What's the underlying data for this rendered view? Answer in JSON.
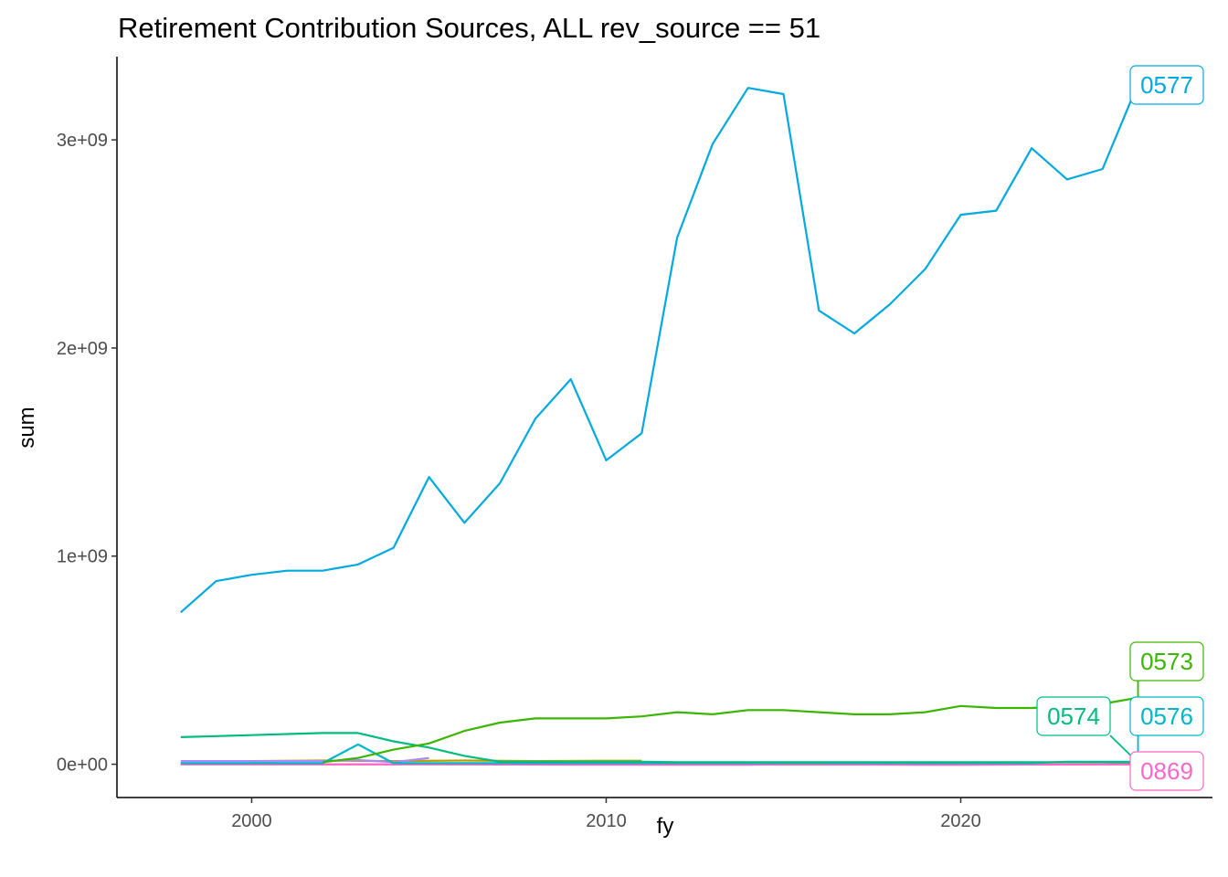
{
  "chart_data": {
    "type": "line",
    "title": "Retirement Contribution Sources, ALL rev_source == 51",
    "xlabel": "fy",
    "ylabel": "sum",
    "xlim": [
      1996.2,
      2027.1
    ],
    "ylim": [
      -160000000,
      3400000000
    ],
    "x_ticks": [
      2000,
      2010,
      2020
    ],
    "x_tick_labels": [
      "2000",
      "2010",
      "2020"
    ],
    "y_ticks": [
      0,
      1000000000,
      2000000000,
      3000000000
    ],
    "y_tick_labels": [
      "0e+00",
      "1e+09",
      "2e+09",
      "3e+09"
    ],
    "grid": false,
    "legend": "none (direct labels at line ends)",
    "series": [
      {
        "name": "0577",
        "color": "#00a9e0",
        "x": [
          1998,
          1999,
          2000,
          2001,
          2002,
          2003,
          2004,
          2005,
          2006,
          2007,
          2008,
          2009,
          2010,
          2011,
          2012,
          2013,
          2014,
          2015,
          2016,
          2017,
          2018,
          2019,
          2020,
          2021,
          2022,
          2023,
          2024,
          2025
        ],
        "y": [
          730000000,
          880000000,
          910000000,
          930000000,
          930000000,
          960000000,
          1040000000,
          1380000000,
          1160000000,
          1350000000,
          1660000000,
          1850000000,
          1460000000,
          1590000000,
          2530000000,
          2980000000,
          3250000000,
          3220000000,
          2180000000,
          2070000000,
          2210000000,
          2380000000,
          2640000000,
          2660000000,
          2960000000,
          2810000000,
          2860000000,
          3270000000
        ]
      },
      {
        "name": "0573",
        "color": "#3ab500",
        "x": [
          2002,
          2003,
          2004,
          2005,
          2006,
          2007,
          2008,
          2009,
          2010,
          2011,
          2012,
          2013,
          2014,
          2015,
          2016,
          2017,
          2018,
          2019,
          2020,
          2021,
          2022,
          2023,
          2024,
          2025
        ],
        "y": [
          10000000,
          30000000,
          70000000,
          100000000,
          160000000,
          200000000,
          220000000,
          220000000,
          220000000,
          230000000,
          250000000,
          240000000,
          260000000,
          260000000,
          250000000,
          240000000,
          240000000,
          250000000,
          280000000,
          270000000,
          270000000,
          280000000,
          290000000,
          320000000
        ]
      },
      {
        "name": "0574",
        "color": "#00bc7e",
        "x": [
          1998,
          1999,
          2000,
          2001,
          2002,
          2003,
          2004,
          2005,
          2006,
          2007,
          2008,
          2009,
          2010,
          2011,
          2012,
          2013,
          2014,
          2015,
          2016,
          2017,
          2018,
          2019,
          2020,
          2021,
          2022,
          2023,
          2024,
          2025
        ],
        "y": [
          130000000,
          135000000,
          140000000,
          145000000,
          150000000,
          150000000,
          110000000,
          80000000,
          40000000,
          12000000,
          12000000,
          12000000,
          12000000,
          12000000,
          10000000,
          10000000,
          10000000,
          10000000,
          10000000,
          10000000,
          10000000,
          10000000,
          10000000,
          10000000,
          10000000,
          10000000,
          10000000,
          8000000
        ]
      },
      {
        "name": "0576",
        "color": "#00b6c8",
        "x": [
          1998,
          1999,
          2000,
          2001,
          2002,
          2003,
          2004,
          2005,
          2006,
          2007,
          2008,
          2009,
          2010,
          2011,
          2012,
          2013,
          2014,
          2015,
          2016,
          2017,
          2018,
          2019,
          2020,
          2021,
          2022,
          2023,
          2024,
          2025
        ],
        "y": [
          5000000,
          5000000,
          5000000,
          5000000,
          5000000,
          95000000,
          5000000,
          5000000,
          5000000,
          5000000,
          5000000,
          5000000,
          5000000,
          5000000,
          5000000,
          5000000,
          5000000,
          5000000,
          5000000,
          5000000,
          5000000,
          5000000,
          5000000,
          5000000,
          5000000,
          12000000,
          12000000,
          12000000
        ]
      },
      {
        "name": "0869",
        "color": "#ff66c8",
        "x": [
          1998,
          2000,
          2005,
          2010,
          2014,
          2015,
          2020,
          2025
        ],
        "y": [
          0,
          0,
          0,
          -3000000,
          -3000000,
          0,
          -3000000,
          0
        ]
      },
      {
        "name": "",
        "color": "#a58aff",
        "x": [
          1998,
          2000,
          2002,
          2003,
          2004,
          2005
        ],
        "y": [
          15000000,
          15000000,
          15000000,
          20000000,
          10000000,
          30000000
        ]
      },
      {
        "name": "",
        "color": "#b8a000",
        "x": [
          2000,
          2002,
          2004,
          2006,
          2008,
          2010,
          2011
        ],
        "y": [
          15000000,
          18000000,
          15000000,
          18000000,
          15000000,
          17000000,
          17000000
        ]
      },
      {
        "name": "",
        "color": "#f8766d",
        "x": [
          1998,
          2005,
          2010,
          2015,
          2020,
          2025
        ],
        "y": [
          0,
          0,
          0,
          -2000000,
          -2000000,
          0
        ]
      }
    ],
    "labels": [
      {
        "text": "0577",
        "color": "#00a9e0",
        "series": "0577"
      },
      {
        "text": "0573",
        "color": "#3ab500",
        "series": "0573"
      },
      {
        "text": "0574",
        "color": "#00bc7e",
        "series": "0574"
      },
      {
        "text": "0576",
        "color": "#00b6c8",
        "series": "0576"
      },
      {
        "text": "0869",
        "color": "#ff66c8",
        "series": "0869"
      }
    ]
  }
}
